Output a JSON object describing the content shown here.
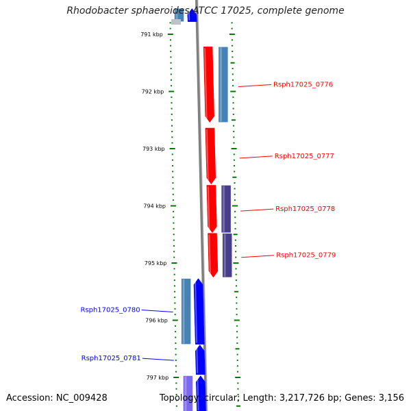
{
  "title": "Rhodobacter sphaeroides ATCC 17025, complete genome",
  "footer": {
    "accession": "Accession: NC_009428",
    "summary": "Topology: circular; Length: 3,217,726 bp; Genes: 3,156"
  },
  "colors": {
    "forward_gene": "#ff0000",
    "reverse_gene": "#0000ff",
    "paired_steelblue": "#4682b4",
    "paired_slate": "#483d8b",
    "paired_violet": "#7b68ee",
    "tick": "#007700",
    "backbone": "#808080"
  },
  "scale_ticks": [
    {
      "kbp": 791,
      "label": "791 kbp"
    },
    {
      "kbp": 792,
      "label": "792 kbp"
    },
    {
      "kbp": 793,
      "label": "793 kbp"
    },
    {
      "kbp": 794,
      "label": "794 kbp"
    },
    {
      "kbp": 795,
      "label": "795 kbp"
    },
    {
      "kbp": 796,
      "label": "796 kbp"
    },
    {
      "kbp": 797,
      "label": "797 kbp"
    }
  ],
  "genes": [
    {
      "id": "g0775",
      "label": "",
      "strand": "reverse",
      "start_kbp": 790.55,
      "end_kbp": 790.78
    },
    {
      "id": "g0776",
      "label": "Rsph17025_0776",
      "strand": "forward",
      "start_kbp": 791.22,
      "end_kbp": 792.54
    },
    {
      "id": "g0777",
      "label": "Rsph17025_0777",
      "strand": "forward",
      "start_kbp": 792.64,
      "end_kbp": 793.62
    },
    {
      "id": "g0778",
      "label": "Rsph17025_0778",
      "strand": "forward",
      "start_kbp": 793.64,
      "end_kbp": 794.47
    },
    {
      "id": "g0779",
      "label": "Rsph17025_0779",
      "strand": "forward",
      "start_kbp": 794.48,
      "end_kbp": 795.25
    },
    {
      "id": "g0780",
      "label": "Rsph17025_0780",
      "strand": "reverse",
      "start_kbp": 795.27,
      "end_kbp": 796.42
    },
    {
      "id": "g0781",
      "label": "Rsph17025_0781",
      "strand": "reverse",
      "start_kbp": 796.43,
      "end_kbp": 796.95
    },
    {
      "id": "g0782",
      "label": "",
      "strand": "reverse",
      "start_kbp": 796.97,
      "end_kbp": 797.6
    }
  ],
  "features": [
    {
      "gene": "g0775",
      "color": "paired_steelblue",
      "start_kbp": 790.55,
      "end_kbp": 790.78
    },
    {
      "gene": "g0776",
      "color": "paired_steelblue",
      "start_kbp": 791.22,
      "end_kbp": 792.54
    },
    {
      "gene": "g0778",
      "color": "paired_slate",
      "start_kbp": 793.64,
      "end_kbp": 794.47
    },
    {
      "gene": "g0779",
      "color": "paired_slate",
      "start_kbp": 794.48,
      "end_kbp": 795.25
    },
    {
      "gene": "g0780",
      "color": "paired_steelblue",
      "start_kbp": 795.27,
      "end_kbp": 796.42
    },
    {
      "gene": "g0782",
      "color": "paired_violet",
      "start_kbp": 796.97,
      "end_kbp": 797.6
    }
  ]
}
